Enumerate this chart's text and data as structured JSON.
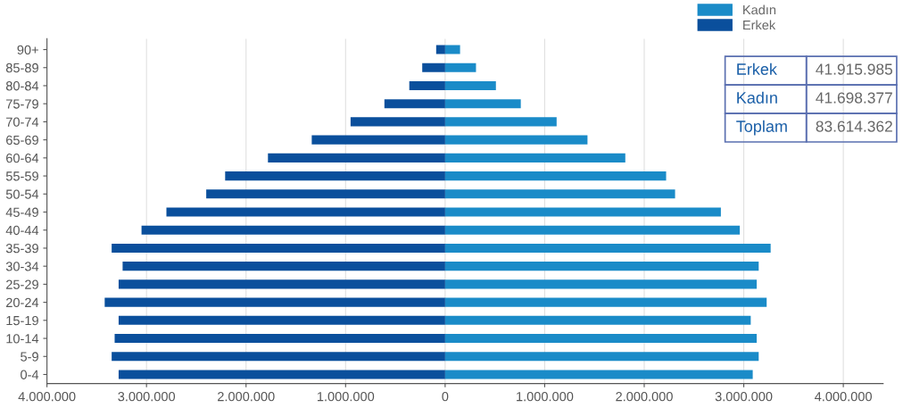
{
  "chart_data": {
    "type": "bar",
    "orientation": "horizontal",
    "stacked": true,
    "categories": [
      "90+",
      "85-89",
      "80-84",
      "75-79",
      "70-74",
      "65-69",
      "60-64",
      "55-59",
      "50-54",
      "45-49",
      "40-44",
      "35-39",
      "30-34",
      "25-29",
      "20-24",
      "15-19",
      "10-14",
      "5-9",
      "0-4"
    ],
    "series": [
      {
        "name": "Kadın",
        "color": "#1a8bc8",
        "values": [
          150000,
          310000,
          510000,
          760000,
          1120000,
          1430000,
          1810000,
          2220000,
          2310000,
          2770000,
          2960000,
          3270000,
          3150000,
          3130000,
          3230000,
          3070000,
          3130000,
          3150000,
          3090000
        ]
      },
      {
        "name": "Erkek",
        "color": "#0a4f9c",
        "values": [
          -90000,
          -230000,
          -360000,
          -610000,
          -950000,
          -1340000,
          -1780000,
          -2210000,
          -2400000,
          -2800000,
          -3050000,
          -3350000,
          -3240000,
          -3280000,
          -3420000,
          -3280000,
          -3320000,
          -3350000,
          -3280000
        ]
      }
    ],
    "xlim": [
      -4000000,
      4400000
    ],
    "xticks": [
      {
        "value": -4000000,
        "label": "4.000.000"
      },
      {
        "value": -3000000,
        "label": "3.000.000"
      },
      {
        "value": -2000000,
        "label": "2.000.000"
      },
      {
        "value": -1000000,
        "label": "1.000.000"
      },
      {
        "value": 0,
        "label": "0"
      },
      {
        "value": 1000000,
        "label": "1.000.000"
      },
      {
        "value": 2000000,
        "label": "2.000.000"
      },
      {
        "value": 3000000,
        "label": "3.000.000"
      },
      {
        "value": 4000000,
        "label": "4.000.000"
      }
    ],
    "grid": "x",
    "legend": "top right",
    "annotations": [
      "Erkek",
      "41.915.985",
      "Kadın",
      "41.698.377",
      "Toplam",
      "83.614.362"
    ]
  }
}
